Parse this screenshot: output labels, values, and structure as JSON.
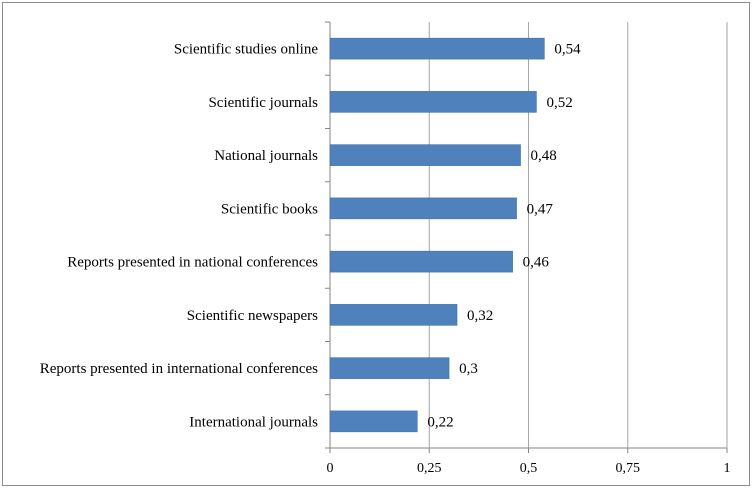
{
  "colors": {
    "bar": "#4f81bd",
    "bar_stroke": "#3a6aa6",
    "grid": "#a6a6a6",
    "axis": "#868686"
  },
  "chart_data": {
    "type": "bar",
    "orientation": "horizontal",
    "title": "",
    "xlabel": "",
    "ylabel": "",
    "xlim": [
      0,
      1
    ],
    "grid": true,
    "legend": "none",
    "categories": [
      "Scientific studies online",
      "Scientific journals",
      "National journals",
      "Scientific books",
      "Reports presented in national conferences",
      "Scientific newspapers",
      "Reports presented in international conferences",
      "International journals"
    ],
    "values": [
      0.54,
      0.52,
      0.48,
      0.47,
      0.46,
      0.32,
      0.3,
      0.22
    ],
    "value_labels": [
      "0,54",
      "0,52",
      "0,48",
      "0,47",
      "0,46",
      "0,32",
      "0,3",
      "0,22"
    ],
    "ticks": [
      0,
      0.25,
      0.5,
      0.75,
      1
    ],
    "tick_labels": [
      "0",
      "0,25",
      "0,5",
      "0,75",
      "1"
    ]
  }
}
